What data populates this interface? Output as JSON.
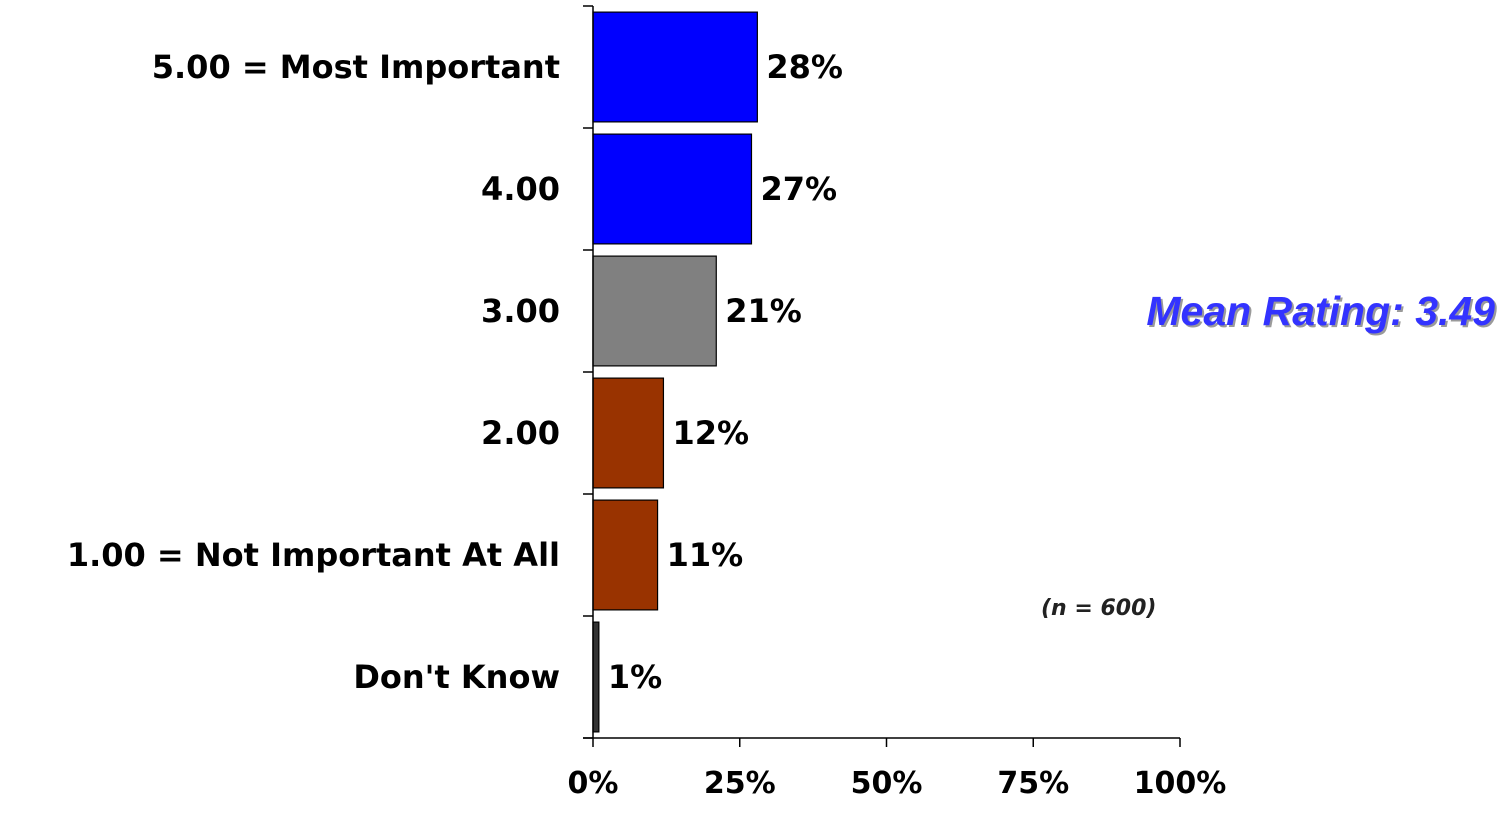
{
  "chart_data": {
    "type": "bar",
    "orientation": "horizontal",
    "categories": [
      "5.00 = Most Important",
      "4.00",
      "3.00",
      "2.00",
      "1.00 = Not Important At All",
      "Don't Know"
    ],
    "values": [
      28,
      27,
      21,
      12,
      11,
      1
    ],
    "value_labels": [
      "28%",
      "27%",
      "21%",
      "12%",
      "11%",
      "1%"
    ],
    "bar_colors": [
      "#0000ff",
      "#0000ff",
      "#808080",
      "#993300",
      "#993300",
      "#333333"
    ],
    "xlim": [
      0,
      100
    ],
    "xticks": [
      0,
      25,
      50,
      75,
      100
    ],
    "xtick_labels": [
      "0%",
      "25%",
      "50%",
      "75%",
      "100%"
    ],
    "grid": false,
    "legend": false,
    "title": "",
    "xlabel": "",
    "ylabel": ""
  },
  "annotations": {
    "mean_rating": "Mean Rating:  3.49",
    "mean_rating_color": "#3333ff",
    "sample_size": "(n = 600)"
  }
}
